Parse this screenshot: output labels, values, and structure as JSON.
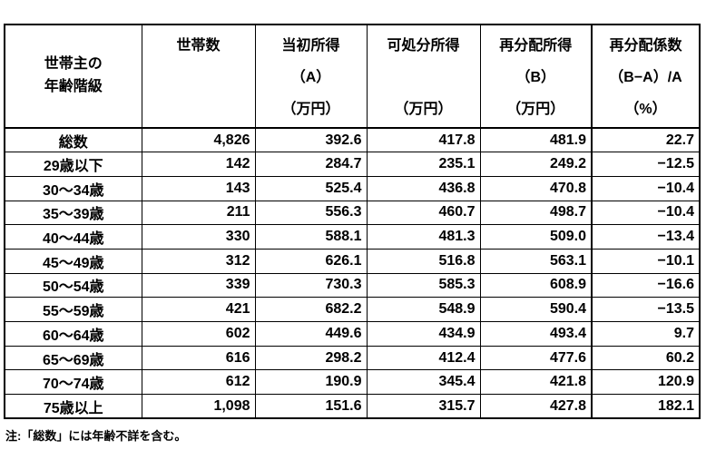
{
  "table": {
    "header": {
      "row_label_lines": [
        "世帯主の",
        "年齢階級"
      ],
      "columns": [
        {
          "title": "世帯数",
          "symbol": "",
          "unit": ""
        },
        {
          "title": "当初所得",
          "symbol": "（A）",
          "unit": "（万円）"
        },
        {
          "title": "可処分所得",
          "symbol": "",
          "unit": "（万円）"
        },
        {
          "title": "再分配所得",
          "symbol": "（B）",
          "unit": "（万円）"
        },
        {
          "title": "再分配係数",
          "symbol": "（B−A）/A",
          "unit": "（%）"
        }
      ]
    },
    "rows": [
      {
        "label": "総数",
        "values": [
          "4,826",
          "392.6",
          "417.8",
          "481.9",
          "22.7"
        ]
      },
      {
        "label": "29歳以下",
        "values": [
          "142",
          "284.7",
          "235.1",
          "249.2",
          "−12.5"
        ]
      },
      {
        "label": "30～34歳",
        "values": [
          "143",
          "525.4",
          "436.8",
          "470.8",
          "−10.4"
        ]
      },
      {
        "label": "35～39歳",
        "values": [
          "211",
          "556.3",
          "460.7",
          "498.7",
          "−10.4"
        ]
      },
      {
        "label": "40～44歳",
        "values": [
          "330",
          "588.1",
          "481.3",
          "509.0",
          "−13.4"
        ]
      },
      {
        "label": "45～49歳",
        "values": [
          "312",
          "626.1",
          "516.8",
          "563.1",
          "−10.1"
        ]
      },
      {
        "label": "50～54歳",
        "values": [
          "339",
          "730.3",
          "585.3",
          "608.9",
          "−16.6"
        ]
      },
      {
        "label": "55～59歳",
        "values": [
          "421",
          "682.2",
          "548.9",
          "590.4",
          "−13.5"
        ]
      },
      {
        "label": "60～64歳",
        "values": [
          "602",
          "449.6",
          "434.9",
          "493.4",
          "9.7"
        ]
      },
      {
        "label": "65～69歳",
        "values": [
          "616",
          "298.2",
          "412.4",
          "477.6",
          "60.2"
        ]
      },
      {
        "label": "70～74歳",
        "values": [
          "612",
          "190.9",
          "345.4",
          "421.8",
          "120.9"
        ]
      },
      {
        "label": "75歳以上",
        "values": [
          "1,098",
          "151.6",
          "315.7",
          "427.8",
          "182.1"
        ]
      }
    ]
  },
  "note": "注:「総数」には年齢不詳を含む。"
}
